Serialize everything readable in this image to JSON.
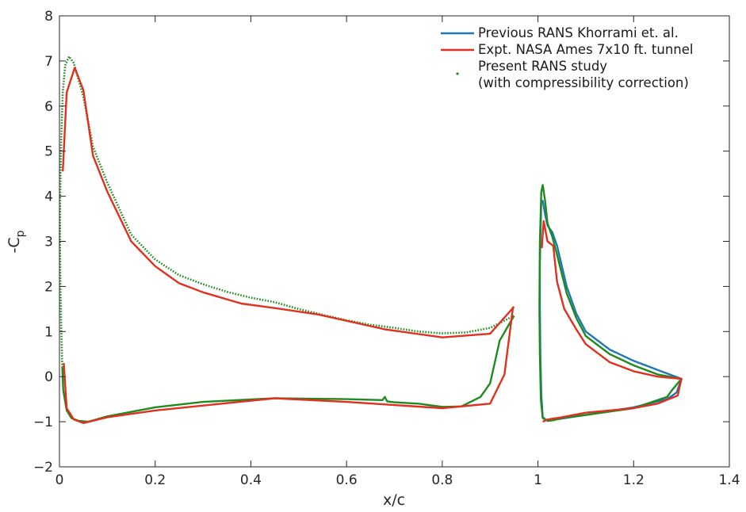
{
  "chart_data": {
    "type": "line",
    "title": "",
    "xlabel": "x/c",
    "ylabel_main": "-C",
    "ylabel_sub": "p",
    "xlim": [
      0,
      1.4
    ],
    "ylim": [
      -2,
      8
    ],
    "xticks": [
      0,
      0.2,
      0.4,
      0.6,
      0.8,
      1,
      1.2,
      1.4
    ],
    "xtick_labels": [
      "0",
      "0.2",
      "0.4",
      "0.6",
      "0.8",
      "1",
      "1.2",
      "1.4"
    ],
    "yticks": [
      -2,
      -1,
      0,
      1,
      2,
      3,
      4,
      5,
      6,
      7,
      8
    ],
    "ytick_labels": [
      "−2",
      "−1",
      "0",
      "1",
      "2",
      "3",
      "4",
      "5",
      "6",
      "7",
      "8"
    ],
    "grid": false,
    "legend_position": "top-right",
    "colors": {
      "rans_prev": "#1f77b4",
      "expt": "#e03020",
      "present": "#1f8a1f"
    },
    "legend": [
      {
        "key": "rans_prev",
        "label_lines": [
          "Previous RANS Khorrami et. al."
        ],
        "style": "line"
      },
      {
        "key": "expt",
        "label_lines": [
          "Expt. NASA Ames 7x10 ft. tunnel"
        ],
        "style": "line"
      },
      {
        "key": "present",
        "label_lines": [
          "Present RANS study",
          "(with compressibility correction)"
        ],
        "style": "dot"
      }
    ],
    "series": [
      {
        "key": "rans_prev",
        "name": "Previous RANS Khorrami et. al.",
        "segments": [
          [
            [
              1.005,
              3.0
            ],
            [
              1.007,
              3.9
            ],
            [
              1.01,
              3.9
            ],
            [
              1.015,
              3.6
            ],
            [
              1.02,
              3.35
            ],
            [
              1.03,
              3.2
            ],
            [
              1.04,
              2.9
            ],
            [
              1.06,
              2.0
            ],
            [
              1.08,
              1.4
            ],
            [
              1.1,
              1.0
            ],
            [
              1.15,
              0.6
            ],
            [
              1.2,
              0.35
            ],
            [
              1.25,
              0.15
            ],
            [
              1.3,
              -0.05
            ],
            [
              1.29,
              -0.35
            ],
            [
              1.27,
              -0.5
            ],
            [
              1.2,
              -0.68
            ],
            [
              1.1,
              -0.85
            ],
            [
              1.05,
              -0.93
            ],
            [
              1.02,
              -0.98
            ],
            [
              1.01,
              -0.9
            ],
            [
              1.007,
              -0.4
            ],
            [
              1.005,
              0.5
            ],
            [
              1.004,
              1.5
            ],
            [
              1.004,
              2.5
            ],
            [
              1.005,
              3.0
            ]
          ]
        ]
      },
      {
        "key": "expt",
        "name": "Expt. NASA Ames 7x10 ft. tunnel",
        "segments": [
          [
            [
              0.007,
              4.55
            ],
            [
              0.015,
              6.3
            ],
            [
              0.032,
              6.85
            ],
            [
              0.05,
              6.35
            ],
            [
              0.07,
              4.9
            ],
            [
              0.1,
              4.1
            ],
            [
              0.15,
              3.0
            ],
            [
              0.2,
              2.45
            ],
            [
              0.25,
              2.07
            ],
            [
              0.3,
              1.87
            ],
            [
              0.38,
              1.62
            ],
            [
              0.45,
              1.52
            ],
            [
              0.54,
              1.38
            ],
            [
              0.68,
              1.05
            ],
            [
              0.8,
              0.87
            ],
            [
              0.9,
              0.95
            ],
            [
              0.95,
              1.55
            ]
          ],
          [
            [
              0.948,
              1.55
            ],
            [
              0.93,
              0.05
            ],
            [
              0.9,
              -0.6
            ],
            [
              0.8,
              -0.7
            ],
            [
              0.6,
              -0.56
            ],
            [
              0.45,
              -0.48
            ],
            [
              0.2,
              -0.75
            ],
            [
              0.1,
              -0.9
            ],
            [
              0.05,
              -1.03
            ],
            [
              0.03,
              -0.95
            ],
            [
              0.015,
              -0.7
            ],
            [
              0.009,
              0.3
            ]
          ],
          [
            [
              1.008,
              2.85
            ],
            [
              1.012,
              3.45
            ],
            [
              1.02,
              3.0
            ],
            [
              1.032,
              2.9
            ],
            [
              1.04,
              2.1
            ],
            [
              1.055,
              1.5
            ],
            [
              1.08,
              1.05
            ],
            [
              1.1,
              0.72
            ],
            [
              1.15,
              0.32
            ],
            [
              1.2,
              0.12
            ],
            [
              1.25,
              0.0
            ],
            [
              1.3,
              -0.05
            ],
            [
              1.292,
              -0.42
            ],
            [
              1.25,
              -0.6
            ],
            [
              1.2,
              -0.7
            ],
            [
              1.1,
              -0.8
            ],
            [
              1.05,
              -0.9
            ],
            [
              1.02,
              -0.95
            ],
            [
              1.01,
              -1.0
            ]
          ]
        ]
      },
      {
        "key": "present",
        "name": "Present RANS study (with compressibility correction)",
        "segments": [
          [
            [
              0.95,
              1.35
            ],
            [
              0.92,
              0.8
            ],
            [
              0.9,
              -0.15
            ],
            [
              0.88,
              -0.45
            ],
            [
              0.84,
              -0.66
            ],
            [
              0.8,
              -0.67
            ],
            [
              0.75,
              -0.6
            ],
            [
              0.7,
              -0.57
            ],
            [
              0.685,
              -0.55
            ],
            [
              0.68,
              -0.45
            ],
            [
              0.675,
              -0.52
            ],
            [
              0.6,
              -0.5
            ],
            [
              0.45,
              -0.48
            ],
            [
              0.3,
              -0.56
            ],
            [
              0.2,
              -0.68
            ],
            [
              0.1,
              -0.88
            ],
            [
              0.06,
              -1.0
            ],
            [
              0.04,
              -0.98
            ],
            [
              0.025,
              -0.92
            ],
            [
              0.015,
              -0.75
            ],
            [
              0.008,
              -0.3
            ],
            [
              0.006,
              0.2
            ]
          ],
          [
            [
              1.004,
              3.0
            ],
            [
              1.007,
              4.1
            ],
            [
              1.01,
              4.25
            ],
            [
              1.015,
              3.9
            ],
            [
              1.02,
              3.4
            ],
            [
              1.03,
              3.1
            ],
            [
              1.04,
              2.7
            ],
            [
              1.06,
              1.85
            ],
            [
              1.08,
              1.3
            ],
            [
              1.1,
              0.9
            ],
            [
              1.15,
              0.5
            ],
            [
              1.2,
              0.25
            ],
            [
              1.25,
              0.05
            ],
            [
              1.3,
              -0.05
            ],
            [
              1.28,
              -0.3
            ],
            [
              1.27,
              -0.45
            ],
            [
              1.2,
              -0.7
            ],
            [
              1.1,
              -0.85
            ],
            [
              1.05,
              -0.92
            ],
            [
              1.03,
              -0.97
            ],
            [
              1.02,
              -0.98
            ],
            [
              1.01,
              -0.92
            ],
            [
              1.006,
              -0.5
            ],
            [
              1.004,
              0.5
            ],
            [
              1.003,
              1.5
            ],
            [
              1.004,
              3.0
            ]
          ]
        ],
        "dot_segments": [
          [
            [
              0.006,
              0.2
            ],
            [
              0.004,
              1.0
            ],
            [
              0.002,
              2.0
            ],
            [
              0.001,
              3.0
            ],
            [
              0.0015,
              4.0
            ],
            [
              0.003,
              5.0
            ],
            [
              0.005,
              5.7
            ],
            [
              0.007,
              6.3
            ],
            [
              0.012,
              6.9
            ],
            [
              0.02,
              7.1
            ],
            [
              0.03,
              6.95
            ],
            [
              0.05,
              6.2
            ],
            [
              0.07,
              5.1
            ],
            [
              0.1,
              4.3
            ],
            [
              0.15,
              3.15
            ],
            [
              0.2,
              2.6
            ],
            [
              0.25,
              2.25
            ],
            [
              0.3,
              2.05
            ],
            [
              0.35,
              1.88
            ],
            [
              0.4,
              1.75
            ],
            [
              0.45,
              1.65
            ],
            [
              0.5,
              1.5
            ],
            [
              0.55,
              1.37
            ],
            [
              0.6,
              1.25
            ],
            [
              0.65,
              1.15
            ],
            [
              0.7,
              1.08
            ],
            [
              0.75,
              1.0
            ],
            [
              0.8,
              0.96
            ],
            [
              0.85,
              0.98
            ],
            [
              0.9,
              1.08
            ],
            [
              0.95,
              1.35
            ]
          ]
        ]
      }
    ]
  }
}
